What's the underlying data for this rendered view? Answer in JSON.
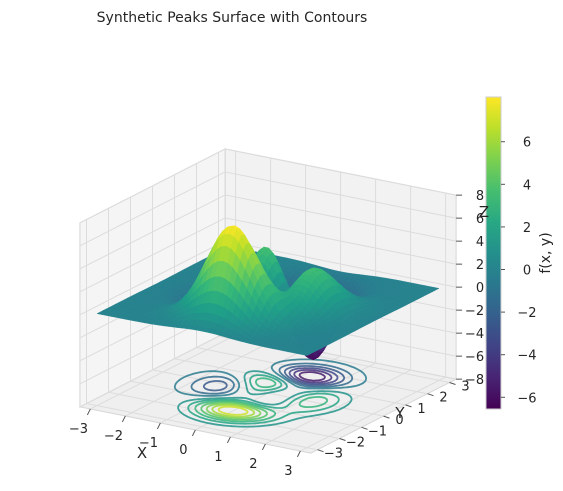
{
  "chart_data": {
    "type": "surface3d",
    "title": "Synthetic Peaks Surface with Contours",
    "function": "peaks",
    "xlabel": "X",
    "ylabel": "Y",
    "zlabel": "Z",
    "xlim": [
      -3,
      3
    ],
    "ylim": [
      -3,
      3
    ],
    "zlim": [
      -8,
      8
    ],
    "xticks": [
      "−3",
      "−2",
      "−1",
      "0",
      "1",
      "2",
      "3"
    ],
    "yticks": [
      "−3",
      "−2",
      "−1",
      "0",
      "1",
      "2",
      "3"
    ],
    "zticks": [
      "−8",
      "−6",
      "−4",
      "−2",
      "0",
      "2",
      "4",
      "6",
      "8"
    ],
    "zmin": -6.55,
    "zmax": 8.1,
    "colormap": "viridis",
    "colorbar": {
      "label": "f(x, y)",
      "ticks": [
        "−6",
        "−4",
        "−2",
        "0",
        "2",
        "4",
        "6"
      ],
      "range": [
        -6.55,
        8.1
      ]
    },
    "contour_offset": -8,
    "peaks": [
      {
        "x": 0.0,
        "y": 1.6,
        "z": 8.1
      },
      {
        "x": 0.0,
        "y": -1.6,
        "z": -6.55
      },
      {
        "x": -0.46,
        "y": -0.63,
        "z": 3.78
      },
      {
        "x": 1.29,
        "y": 0.0,
        "z": 3.59
      },
      {
        "x": 0.23,
        "y": -0.34,
        "z": -3.05
      }
    ],
    "grid": true
  }
}
